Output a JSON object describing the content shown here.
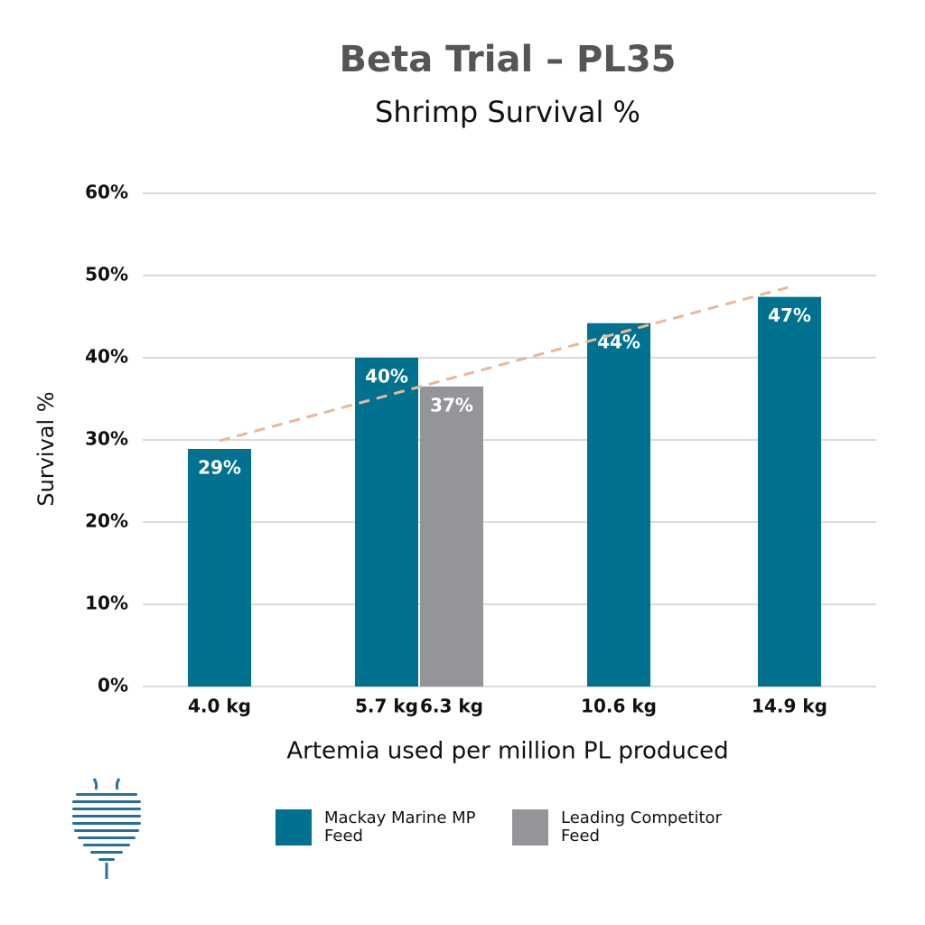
{
  "chart_data": {
    "type": "bar",
    "title": "Beta Trial – PL35",
    "subtitle": "Shrimp Survival %",
    "y_label": "Survival %",
    "x_label": "Artemia used per million PL produced",
    "categories": [
      "4.0 kg",
      "5.7 kg",
      "6.3 kg",
      "10.6 kg",
      "14.9 kg"
    ],
    "series": [
      {
        "name": "Mackay Marine MP Feed",
        "color": "#00718f",
        "values": [
          28.9,
          40,
          null,
          44.2,
          47.4
        ],
        "value_labels": [
          "29%",
          "40%",
          null,
          "44%",
          "47%"
        ]
      },
      {
        "name": "Leading Competitor Feed",
        "color": "#939598",
        "values": [
          null,
          null,
          36.5,
          null,
          null
        ],
        "value_labels": [
          null,
          null,
          "37%",
          null,
          null
        ]
      }
    ],
    "trendline": {
      "color": "#e8b89a",
      "values": [
        29.9,
        48.6
      ]
    },
    "ylim": [
      0,
      60
    ],
    "yticks": [
      {
        "value": 0,
        "label": "0%"
      },
      {
        "value": 10,
        "label": "10%"
      },
      {
        "value": 20,
        "label": "20%"
      },
      {
        "value": 30,
        "label": "30%"
      },
      {
        "value": 40,
        "label": "40%"
      },
      {
        "value": 50,
        "label": "50%"
      },
      {
        "value": 60,
        "label": "60%"
      }
    ],
    "grid": true
  }
}
